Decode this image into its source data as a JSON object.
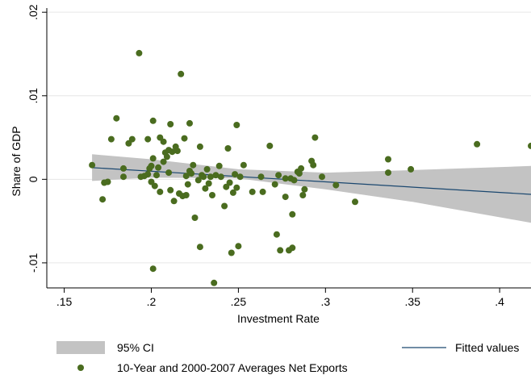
{
  "chart_data": {
    "type": "scatter",
    "xlabel": "Investment Rate",
    "ylabel": "Share of GDP",
    "xlim": [
      0.14,
      0.418
    ],
    "ylim": [
      -0.013,
      0.0205
    ],
    "x_ticks": [
      {
        "value": 0.15,
        "label": ".15"
      },
      {
        "value": 0.2,
        "label": ".2"
      },
      {
        "value": 0.25,
        "label": ".25"
      },
      {
        "value": 0.3,
        "label": ".3"
      },
      {
        "value": 0.35,
        "label": ".35"
      },
      {
        "value": 0.4,
        "label": ".4"
      }
    ],
    "y_ticks": [
      {
        "value": -0.01,
        "label": "-.01"
      },
      {
        "value": 0,
        "label": "0"
      },
      {
        "value": 0.01,
        "label": ".01"
      },
      {
        "value": 0.02,
        "label": ".02"
      }
    ],
    "grid": true,
    "legend_position": "bottom",
    "colors": {
      "scatter": "#4a6c1f",
      "fitted": "#1a476f",
      "ci": "#c3c3c3",
      "grid": "#e6e6e6"
    },
    "confidence_band": {
      "name": "95% CI",
      "x": [
        0.166,
        0.2,
        0.25,
        0.3,
        0.35,
        0.418
      ],
      "lower": [
        -0.0002,
        0.0002,
        0.0001,
        -0.0012,
        -0.0027,
        -0.0052
      ],
      "upper": [
        0.003,
        0.0024,
        0.0012,
        0.0008,
        0.0011,
        0.0016
      ]
    },
    "fitted_line": {
      "name": "Fitted values",
      "x": [
        0.166,
        0.418
      ],
      "y": [
        0.0014,
        -0.0018
      ]
    },
    "scatter": {
      "name": "10-Year and 2000-2007 Averages Net Exports",
      "points": [
        [
          0.166,
          0.0017
        ],
        [
          0.172,
          -0.0024
        ],
        [
          0.173,
          -0.0004
        ],
        [
          0.175,
          -0.0003
        ],
        [
          0.177,
          0.0048
        ],
        [
          0.18,
          0.0073
        ],
        [
          0.184,
          0.0013
        ],
        [
          0.184,
          0.0003
        ],
        [
          0.187,
          0.0043
        ],
        [
          0.189,
          0.0048
        ],
        [
          0.193,
          0.0151
        ],
        [
          0.194,
          0.0003
        ],
        [
          0.196,
          0.0004
        ],
        [
          0.198,
          0.0006
        ],
        [
          0.198,
          0.0048
        ],
        [
          0.199,
          0.0013
        ],
        [
          0.2,
          -0.0003
        ],
        [
          0.2,
          0.0016
        ],
        [
          0.201,
          0.007
        ],
        [
          0.201,
          0.0025
        ],
        [
          0.201,
          -0.0107
        ],
        [
          0.202,
          -0.0008
        ],
        [
          0.203,
          0.0005
        ],
        [
          0.204,
          0.0014
        ],
        [
          0.205,
          -0.0015
        ],
        [
          0.205,
          0.005
        ],
        [
          0.207,
          0.0045
        ],
        [
          0.207,
          0.0021
        ],
        [
          0.208,
          0.0032
        ],
        [
          0.209,
          0.0027
        ],
        [
          0.21,
          0.0035
        ],
        [
          0.21,
          0.0008
        ],
        [
          0.211,
          0.0066
        ],
        [
          0.211,
          -0.0013
        ],
        [
          0.212,
          0.0033
        ],
        [
          0.213,
          -0.0026
        ],
        [
          0.214,
          0.0039
        ],
        [
          0.215,
          0.0034
        ],
        [
          0.216,
          -0.0017
        ],
        [
          0.217,
          0.0126
        ],
        [
          0.218,
          -0.002
        ],
        [
          0.219,
          0.0049
        ],
        [
          0.22,
          -0.0019
        ],
        [
          0.22,
          0.0004
        ],
        [
          0.221,
          -0.0006
        ],
        [
          0.222,
          0.0067
        ],
        [
          0.222,
          0.001
        ],
        [
          0.223,
          0.0007
        ],
        [
          0.224,
          0.0017
        ],
        [
          0.225,
          -0.0046
        ],
        [
          0.227,
          -0.0001
        ],
        [
          0.228,
          0.0039
        ],
        [
          0.228,
          -0.0081
        ],
        [
          0.229,
          0.0005
        ],
        [
          0.23,
          0.0003
        ],
        [
          0.231,
          -0.0011
        ],
        [
          0.232,
          0.0012
        ],
        [
          0.233,
          -0.0005
        ],
        [
          0.234,
          0.0003
        ],
        [
          0.235,
          -0.0019
        ],
        [
          0.236,
          -0.0124
        ],
        [
          0.237,
          0.0005
        ],
        [
          0.239,
          0.0016
        ],
        [
          0.24,
          0.0003
        ],
        [
          0.242,
          -0.0032
        ],
        [
          0.243,
          -0.0009
        ],
        [
          0.244,
          0.0037
        ],
        [
          0.245,
          -0.0004
        ],
        [
          0.246,
          -0.0088
        ],
        [
          0.247,
          -0.0016
        ],
        [
          0.248,
          0.0006
        ],
        [
          0.249,
          -0.001
        ],
        [
          0.249,
          0.0065
        ],
        [
          0.25,
          -0.008
        ],
        [
          0.251,
          0.0003
        ],
        [
          0.253,
          0.0017
        ],
        [
          0.258,
          -0.0015
        ],
        [
          0.263,
          0.0003
        ],
        [
          0.264,
          -0.0015
        ],
        [
          0.268,
          0.004
        ],
        [
          0.271,
          -0.0006
        ],
        [
          0.272,
          -0.0066
        ],
        [
          0.273,
          0.0005
        ],
        [
          0.274,
          -0.0085
        ],
        [
          0.277,
          -0.0021
        ],
        [
          0.277,
          0.0001
        ],
        [
          0.279,
          -0.0085
        ],
        [
          0.28,
          0.0001
        ],
        [
          0.281,
          -0.0082
        ],
        [
          0.281,
          -0.0042
        ],
        [
          0.282,
          -0.0001
        ],
        [
          0.284,
          0.0009
        ],
        [
          0.285,
          0.0007
        ],
        [
          0.286,
          0.0013
        ],
        [
          0.287,
          -0.0019
        ],
        [
          0.288,
          -0.0012
        ],
        [
          0.292,
          0.0022
        ],
        [
          0.293,
          0.0017
        ],
        [
          0.294,
          0.005
        ],
        [
          0.298,
          0.0003
        ],
        [
          0.306,
          -0.0007
        ],
        [
          0.317,
          -0.0027
        ],
        [
          0.336,
          0.0024
        ],
        [
          0.336,
          0.0008
        ],
        [
          0.349,
          0.0012
        ],
        [
          0.387,
          0.0042
        ],
        [
          0.418,
          0.004
        ]
      ]
    }
  }
}
